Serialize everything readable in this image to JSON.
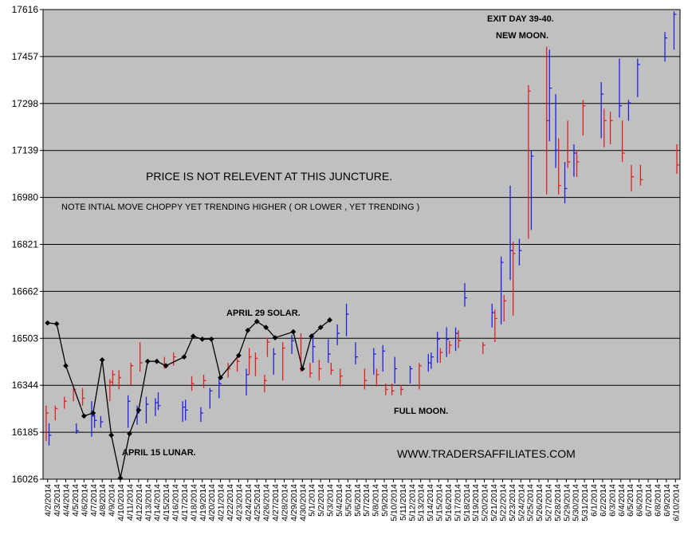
{
  "chart_data": {
    "type": "ohlc+line",
    "title": "",
    "xlabel": "",
    "ylabel": "",
    "ylim": [
      16026,
      17616
    ],
    "yticks": [
      16026,
      16185,
      16344,
      16503,
      16662,
      16821,
      16980,
      17139,
      17298,
      17457,
      17616
    ],
    "grid": true,
    "legend": "none",
    "colors": {
      "plot_bg": "#c0c0c0",
      "up": "#2020e0",
      "down": "#e02020",
      "line": "#000000",
      "grid": "#000000"
    },
    "dates": [
      "4/2/2014",
      "4/3/2014",
      "4/4/2014",
      "4/5/2014",
      "4/6/2014",
      "4/7/2014",
      "4/8/2014",
      "4/9/2014",
      "4/10/2014",
      "4/11/2014",
      "4/12/2014",
      "4/13/2014",
      "4/14/2014",
      "4/15/2014",
      "4/16/2014",
      "4/17/2014",
      "4/18/2014",
      "4/19/2014",
      "4/20/2014",
      "4/21/2014",
      "4/22/2014",
      "4/23/2014",
      "4/24/2014",
      "4/25/2014",
      "4/26/2014",
      "4/27/2014",
      "4/28/2014",
      "4/29/2014",
      "4/30/2014",
      "5/1/2014",
      "5/2/2014",
      "5/3/2014",
      "5/4/2014",
      "5/5/2014",
      "5/6/2014",
      "5/7/2014",
      "5/8/2014",
      "5/9/2014",
      "5/10/2014",
      "5/11/2014",
      "5/12/2014",
      "5/13/2014",
      "5/14/2014",
      "5/15/2014",
      "5/16/2014",
      "5/17/2014",
      "5/18/2014",
      "5/19/2014",
      "5/20/2014",
      "5/21/2014",
      "5/22/2014",
      "5/23/2014",
      "5/24/2014",
      "5/25/2014",
      "5/26/2014",
      "5/27/2014",
      "5/28/2014",
      "5/29/2014",
      "5/30/2014",
      "5/31/2014",
      "6/1/2014",
      "6/2/2014",
      "6/3/2014",
      "6/4/2014",
      "6/5/2014",
      "6/6/2014",
      "6/7/2014",
      "6/8/2014",
      "6/9/2014",
      "6/10/2014"
    ],
    "date_tick_labels": [
      "4/2/2014",
      "4/3/2014",
      "4/4/2014",
      "4/5/2014",
      "4/6/2014",
      "4/7/2014",
      "4/8/2014",
      "4/9/2014",
      "4/10/2014",
      "4/11/2014",
      "4/12/2014",
      "4/13/2014",
      "4/14/2014",
      "4/15/2014",
      "4/16/2014",
      "4/17/2014",
      "4/18/2014",
      "4/19/2014",
      "4/20/2014",
      "4/21/2014",
      "4/22/2014",
      "4/23/2014",
      "4/24/2014",
      "4/25/2014",
      "4/26/2014",
      "4/27/2014",
      "4/28/2014",
      "4/29/2014",
      "4/30/2014",
      "5/1/2014",
      "5/2/2014",
      "5/3/2014",
      "5/4/2014",
      "5/5/2014",
      "5/6/2014",
      "5/7/2014",
      "5/8/2014",
      "5/9/2014",
      "5/10/2014",
      "5/11/2014",
      "5/12/2014",
      "5/13/2014",
      "5/14/2014",
      "5/15/2014",
      "5/16/2014",
      "5/17/2014",
      "5/18/2014",
      "5/19/2014",
      "5/20/2014",
      "5/21/2014",
      "5/22/2014",
      "5/23/2014",
      "5/24/2014",
      "5/25/2014",
      "5/26/2014",
      "5/27/2014",
      "5/28/2014",
      "5/29/2014",
      "5/30/2014",
      "5/31/2014",
      "6/1/2014",
      "6/2/2014",
      "6/3/2014",
      "6/4/2014",
      "6/5/2014",
      "6/6/2014",
      "6/7/2014",
      "6/8/2014",
      "6/9/2014",
      "6/10/2014"
    ],
    "bars": [
      {
        "date": "4/2/2014",
        "high": 16275,
        "low": 16155,
        "close": 16250,
        "dir": "down"
      },
      {
        "date": "4/2/2014",
        "high": 16215,
        "low": 16140,
        "close": 16175,
        "dir": "up"
      },
      {
        "date": "4/3/2014",
        "high": 16275,
        "low": 16225,
        "close": 16265,
        "dir": "down"
      },
      {
        "date": "4/4/2014",
        "high": 16305,
        "low": 16265,
        "close": 16290,
        "dir": "down"
      },
      {
        "date": "4/5/2014",
        "high": 16335,
        "low": 16290,
        "close": 16330,
        "dir": "down"
      },
      {
        "date": "4/5/2014",
        "high": 16215,
        "low": 16180,
        "close": 16190,
        "dir": "up"
      },
      {
        "date": "4/6/2014",
        "high": 16335,
        "low": 16275,
        "close": 16300,
        "dir": "down"
      },
      {
        "date": "4/7/2014",
        "high": 16290,
        "low": 16170,
        "close": 16240,
        "dir": "up"
      },
      {
        "date": "4/7/2014",
        "high": 16245,
        "low": 16200,
        "close": 16225,
        "dir": "up"
      },
      {
        "date": "4/8/2014",
        "high": 16240,
        "low": 16200,
        "close": 16220,
        "dir": "up"
      },
      {
        "date": "4/9/2014",
        "high": 16365,
        "low": 16290,
        "close": 16355,
        "dir": "down"
      },
      {
        "date": "4/9/2014",
        "high": 16395,
        "low": 16345,
        "close": 16380,
        "dir": "down"
      },
      {
        "date": "4/10/2014",
        "high": 16395,
        "low": 16330,
        "close": 16370,
        "dir": "down"
      },
      {
        "date": "4/11/2014",
        "high": 16310,
        "low": 16200,
        "close": 16290,
        "dir": "up"
      },
      {
        "date": "4/11/2014",
        "high": 16420,
        "low": 16345,
        "close": 16410,
        "dir": "down"
      },
      {
        "date": "4/12/2014",
        "high": 16275,
        "low": 16210,
        "close": 16250,
        "dir": "up"
      },
      {
        "date": "4/12/2014",
        "high": 16490,
        "low": 16390,
        "close": 16420,
        "dir": "down"
      },
      {
        "date": "4/13/2014",
        "high": 16305,
        "low": 16215,
        "close": 16280,
        "dir": "up"
      },
      {
        "date": "4/14/2014",
        "high": 16300,
        "low": 16240,
        "close": 16285,
        "dir": "up"
      },
      {
        "date": "4/14/2014",
        "high": 16320,
        "low": 16260,
        "close": 16275,
        "dir": "up"
      },
      {
        "date": "4/15/2014",
        "high": 16440,
        "low": 16400,
        "close": 16415,
        "dir": "down"
      },
      {
        "date": "4/16/2014",
        "high": 16455,
        "low": 16410,
        "close": 16440,
        "dir": "down"
      },
      {
        "date": "4/17/2014",
        "high": 16290,
        "low": 16220,
        "close": 16270,
        "dir": "up"
      },
      {
        "date": "4/17/2014",
        "high": 16295,
        "low": 16225,
        "close": 16260,
        "dir": "up"
      },
      {
        "date": "4/18/2014",
        "high": 16375,
        "low": 16325,
        "close": 16350,
        "dir": "down"
      },
      {
        "date": "4/19/2014",
        "high": 16270,
        "low": 16220,
        "close": 16250,
        "dir": "up"
      },
      {
        "date": "4/19/2014",
        "high": 16380,
        "low": 16335,
        "close": 16360,
        "dir": "down"
      },
      {
        "date": "4/20/2014",
        "high": 16335,
        "low": 16265,
        "close": 16325,
        "dir": "up"
      },
      {
        "date": "4/21/2014",
        "high": 16370,
        "low": 16300,
        "close": 16350,
        "dir": "up"
      },
      {
        "date": "4/22/2014",
        "high": 16420,
        "low": 16370,
        "close": 16400,
        "dir": "down"
      },
      {
        "date": "4/23/2014",
        "high": 16445,
        "low": 16390,
        "close": 16425,
        "dir": "down"
      },
      {
        "date": "4/24/2014",
        "high": 16400,
        "low": 16310,
        "close": 16380,
        "dir": "up"
      },
      {
        "date": "4/24/2014",
        "high": 16470,
        "low": 16380,
        "close": 16440,
        "dir": "down"
      },
      {
        "date": "4/25/2014",
        "high": 16455,
        "low": 16375,
        "close": 16435,
        "dir": "down"
      },
      {
        "date": "4/26/2014",
        "high": 16380,
        "low": 16320,
        "close": 16360,
        "dir": "down"
      },
      {
        "date": "4/26/2014",
        "high": 16505,
        "low": 16440,
        "close": 16490,
        "dir": "down"
      },
      {
        "date": "4/27/2014",
        "high": 16470,
        "low": 16380,
        "close": 16450,
        "dir": "up"
      },
      {
        "date": "4/28/2014",
        "high": 16490,
        "low": 16360,
        "close": 16470,
        "dir": "down"
      },
      {
        "date": "4/29/2014",
        "high": 16515,
        "low": 16450,
        "close": 16495,
        "dir": "up"
      },
      {
        "date": "4/30/2014",
        "high": 16520,
        "low": 16390,
        "close": 16400,
        "dir": "down"
      },
      {
        "date": "5/1/2014",
        "high": 16420,
        "low": 16370,
        "close": 16385,
        "dir": "down"
      },
      {
        "date": "5/1/2014",
        "high": 16520,
        "low": 16420,
        "close": 16475,
        "dir": "up"
      },
      {
        "date": "5/2/2014",
        "high": 16430,
        "low": 16360,
        "close": 16400,
        "dir": "down"
      },
      {
        "date": "5/3/2014",
        "high": 16500,
        "low": 16420,
        "close": 16450,
        "dir": "up"
      },
      {
        "date": "5/3/2014",
        "high": 16420,
        "low": 16380,
        "close": 16395,
        "dir": "down"
      },
      {
        "date": "5/4/2014",
        "high": 16550,
        "low": 16480,
        "close": 16520,
        "dir": "up"
      },
      {
        "date": "5/4/2014",
        "high": 16400,
        "low": 16340,
        "close": 16375,
        "dir": "down"
      },
      {
        "date": "5/5/2014",
        "high": 16620,
        "low": 16510,
        "close": 16585,
        "dir": "up"
      },
      {
        "date": "5/6/2014",
        "high": 16490,
        "low": 16415,
        "close": 16440,
        "dir": "up"
      },
      {
        "date": "5/7/2014",
        "high": 16400,
        "low": 16330,
        "close": 16360,
        "dir": "down"
      },
      {
        "date": "5/8/2014",
        "high": 16470,
        "low": 16380,
        "close": 16450,
        "dir": "up"
      },
      {
        "date": "5/8/2014",
        "high": 16400,
        "low": 16340,
        "close": 16380,
        "dir": "down"
      },
      {
        "date": "5/9/2014",
        "high": 16480,
        "low": 16390,
        "close": 16460,
        "dir": "up"
      },
      {
        "date": "5/9/2014",
        "high": 16350,
        "low": 16310,
        "close": 16330,
        "dir": "down"
      },
      {
        "date": "5/10/2014",
        "high": 16350,
        "low": 16310,
        "close": 16325,
        "dir": "down"
      },
      {
        "date": "5/10/2014",
        "high": 16440,
        "low": 16350,
        "close": 16400,
        "dir": "up"
      },
      {
        "date": "5/11/2014",
        "high": 16345,
        "low": 16310,
        "close": 16330,
        "dir": "down"
      },
      {
        "date": "5/12/2014",
        "high": 16410,
        "low": 16350,
        "close": 16400,
        "dir": "up"
      },
      {
        "date": "5/13/2014",
        "high": 16420,
        "low": 16330,
        "close": 16410,
        "dir": "down"
      },
      {
        "date": "5/14/2014",
        "high": 16450,
        "low": 16390,
        "close": 16420,
        "dir": "up"
      },
      {
        "date": "5/14/2014",
        "high": 16455,
        "low": 16400,
        "close": 16440,
        "dir": "up"
      },
      {
        "date": "5/15/2014",
        "high": 16525,
        "low": 16420,
        "close": 16500,
        "dir": "up"
      },
      {
        "date": "5/15/2014",
        "high": 16470,
        "low": 16420,
        "close": 16455,
        "dir": "down"
      },
      {
        "date": "5/16/2014",
        "high": 16540,
        "low": 16440,
        "close": 16500,
        "dir": "up"
      },
      {
        "date": "5/16/2014",
        "high": 16495,
        "low": 16450,
        "close": 16480,
        "dir": "down"
      },
      {
        "date": "5/17/2014",
        "high": 16540,
        "low": 16460,
        "close": 16520,
        "dir": "up"
      },
      {
        "date": "5/17/2014",
        "high": 16530,
        "low": 16470,
        "close": 16495,
        "dir": "down"
      },
      {
        "date": "5/18/2014",
        "high": 16690,
        "low": 16610,
        "close": 16640,
        "dir": "up"
      },
      {
        "date": "5/20/2014",
        "high": 16490,
        "low": 16450,
        "close": 16480,
        "dir": "down"
      },
      {
        "date": "5/21/2014",
        "high": 16620,
        "low": 16540,
        "close": 16590,
        "dir": "up"
      },
      {
        "date": "5/21/2014",
        "high": 16600,
        "low": 16490,
        "close": 16570,
        "dir": "down"
      },
      {
        "date": "5/22/2014",
        "high": 16780,
        "low": 16550,
        "close": 16760,
        "dir": "up"
      },
      {
        "date": "5/22/2014",
        "high": 16650,
        "low": 16560,
        "close": 16630,
        "dir": "down"
      },
      {
        "date": "5/23/2014",
        "high": 17020,
        "low": 16700,
        "close": 16800,
        "dir": "up"
      },
      {
        "date": "5/23/2014",
        "high": 16830,
        "low": 16580,
        "close": 16790,
        "dir": "down"
      },
      {
        "date": "5/24/2014",
        "high": 16840,
        "low": 16750,
        "close": 16800,
        "dir": "up"
      },
      {
        "date": "5/25/2014",
        "high": 17360,
        "low": 16840,
        "close": 17340,
        "dir": "down"
      },
      {
        "date": "5/25/2014",
        "high": 17140,
        "low": 16870,
        "close": 17120,
        "dir": "up"
      },
      {
        "date": "5/27/2014",
        "high": 17490,
        "low": 16990,
        "close": 17240,
        "dir": "down"
      },
      {
        "date": "5/27/2014",
        "high": 17480,
        "low": 17170,
        "close": 17350,
        "dir": "up"
      },
      {
        "date": "5/28/2014",
        "high": 17330,
        "low": 17080,
        "close": 17140,
        "dir": "up"
      },
      {
        "date": "5/28/2014",
        "high": 17180,
        "low": 16990,
        "close": 17020,
        "dir": "down"
      },
      {
        "date": "5/29/2014",
        "high": 17100,
        "low": 16960,
        "close": 17010,
        "dir": "up"
      },
      {
        "date": "5/29/2014",
        "high": 17240,
        "low": 17080,
        "close": 17100,
        "dir": "down"
      },
      {
        "date": "5/30/2014",
        "high": 17160,
        "low": 17050,
        "close": 17130,
        "dir": "up"
      },
      {
        "date": "5/30/2014",
        "high": 17140,
        "low": 17050,
        "close": 17100,
        "dir": "down"
      },
      {
        "date": "5/31/2014",
        "high": 17310,
        "low": 17190,
        "close": 17290,
        "dir": "down"
      },
      {
        "date": "6/2/2014",
        "high": 17370,
        "low": 17180,
        "close": 17330,
        "dir": "up"
      },
      {
        "date": "6/2/2014",
        "high": 17280,
        "low": 17150,
        "close": 17240,
        "dir": "down"
      },
      {
        "date": "6/3/2014",
        "high": 17270,
        "low": 17160,
        "close": 17240,
        "dir": "down"
      },
      {
        "date": "6/4/2014",
        "high": 17450,
        "low": 17250,
        "close": 17290,
        "dir": "up"
      },
      {
        "date": "6/4/2014",
        "high": 17240,
        "low": 17100,
        "close": 17130,
        "dir": "down"
      },
      {
        "date": "6/5/2014",
        "high": 17310,
        "low": 17240,
        "close": 17300,
        "dir": "up"
      },
      {
        "date": "6/5/2014",
        "high": 17090,
        "low": 17000,
        "close": 17050,
        "dir": "down"
      },
      {
        "date": "6/6/2014",
        "high": 17450,
        "low": 17320,
        "close": 17430,
        "dir": "up"
      },
      {
        "date": "6/6/2014",
        "high": 17090,
        "low": 17020,
        "close": 17040,
        "dir": "down"
      },
      {
        "date": "6/9/2014",
        "high": 17540,
        "low": 17440,
        "close": 17520,
        "dir": "up"
      },
      {
        "date": "6/10/2014",
        "high": 17610,
        "low": 17480,
        "close": 17600,
        "dir": "up"
      },
      {
        "date": "6/10/2014",
        "high": 17160,
        "low": 17060,
        "close": 17090,
        "dir": "down"
      }
    ],
    "line": {
      "name": "",
      "points": [
        {
          "date": "4/2/2014",
          "value": 16555
        },
        {
          "date": "4/3/2014",
          "value": 16552
        },
        {
          "date": "4/4/2014",
          "value": 16410
        },
        {
          "date": "4/6/2014",
          "value": 16240
        },
        {
          "date": "4/7/2014",
          "value": 16250
        },
        {
          "date": "4/8/2014",
          "value": 16430
        },
        {
          "date": "4/9/2014",
          "value": 16175
        },
        {
          "date": "4/10/2014",
          "value": 16030
        },
        {
          "date": "4/11/2014",
          "value": 16180
        },
        {
          "date": "4/12/2014",
          "value": 16260
        },
        {
          "date": "4/13/2014",
          "value": 16425
        },
        {
          "date": "4/14/2014",
          "value": 16425
        },
        {
          "date": "4/15/2014",
          "value": 16410
        },
        {
          "date": "4/17/2014",
          "value": 16440
        },
        {
          "date": "4/18/2014",
          "value": 16510
        },
        {
          "date": "4/19/2014",
          "value": 16500
        },
        {
          "date": "4/20/2014",
          "value": 16500
        },
        {
          "date": "4/21/2014",
          "value": 16370
        },
        {
          "date": "4/23/2014",
          "value": 16445
        },
        {
          "date": "4/24/2014",
          "value": 16530
        },
        {
          "date": "4/25/2014",
          "value": 16560
        },
        {
          "date": "4/26/2014",
          "value": 16540
        },
        {
          "date": "4/27/2014",
          "value": 16505
        },
        {
          "date": "4/29/2014",
          "value": 16525
        },
        {
          "date": "4/30/2014",
          "value": 16400
        },
        {
          "date": "5/1/2014",
          "value": 16510
        },
        {
          "date": "5/2/2014",
          "value": 16540
        },
        {
          "date": "5/3/2014",
          "value": 16565
        }
      ]
    },
    "annotations": [
      {
        "id": "exit-day",
        "text": "EXIT DAY 39-40.",
        "style": "bold"
      },
      {
        "id": "new-moon",
        "text": "NEW MOON.",
        "style": "bold"
      },
      {
        "id": "price-note",
        "text": "PRICE IS NOT RELEVENT AT THIS JUNCTURE.",
        "style": "big"
      },
      {
        "id": "move-note",
        "text": "NOTE INTIAL MOVE CHOPPY YET TRENDING HIGHER ( OR LOWER , YET TRENDING )",
        "style": "mid"
      },
      {
        "id": "april29",
        "text": "APRIL 29 SOLAR.",
        "style": "bold"
      },
      {
        "id": "full-moon",
        "text": "FULL MOON.",
        "style": "bold"
      },
      {
        "id": "april15",
        "text": "APRIL 15 LUNAR.",
        "style": "bold"
      },
      {
        "id": "url",
        "text": "WWW.TRADERSAFFILIATES.COM",
        "style": "url"
      }
    ]
  }
}
